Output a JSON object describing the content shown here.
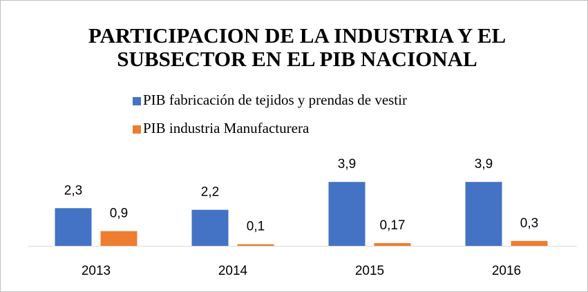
{
  "chart_data": {
    "type": "bar",
    "title": [
      "PARTICIPACION DE LA INDUSTRIA Y EL",
      "SUBSECTOR EN EL PIB NACIONAL"
    ],
    "categories": [
      "2013",
      "2014",
      "2015",
      "2016"
    ],
    "series": [
      {
        "name": "PIB fabricación de tejidos y prendas de vestir",
        "color": "#4472c4",
        "values": [
          2.3,
          2.2,
          3.9,
          3.9
        ],
        "value_labels": [
          "2,3",
          "2,2",
          "3,9",
          "3,9"
        ]
      },
      {
        "name": "PIB industria Manufacturera",
        "color": "#ed7d31",
        "values": [
          0.9,
          0.1,
          0.17,
          0.3
        ],
        "value_labels": [
          "0,9",
          "0,1",
          "0,17",
          "0,3"
        ]
      }
    ],
    "legend": "top"
  }
}
